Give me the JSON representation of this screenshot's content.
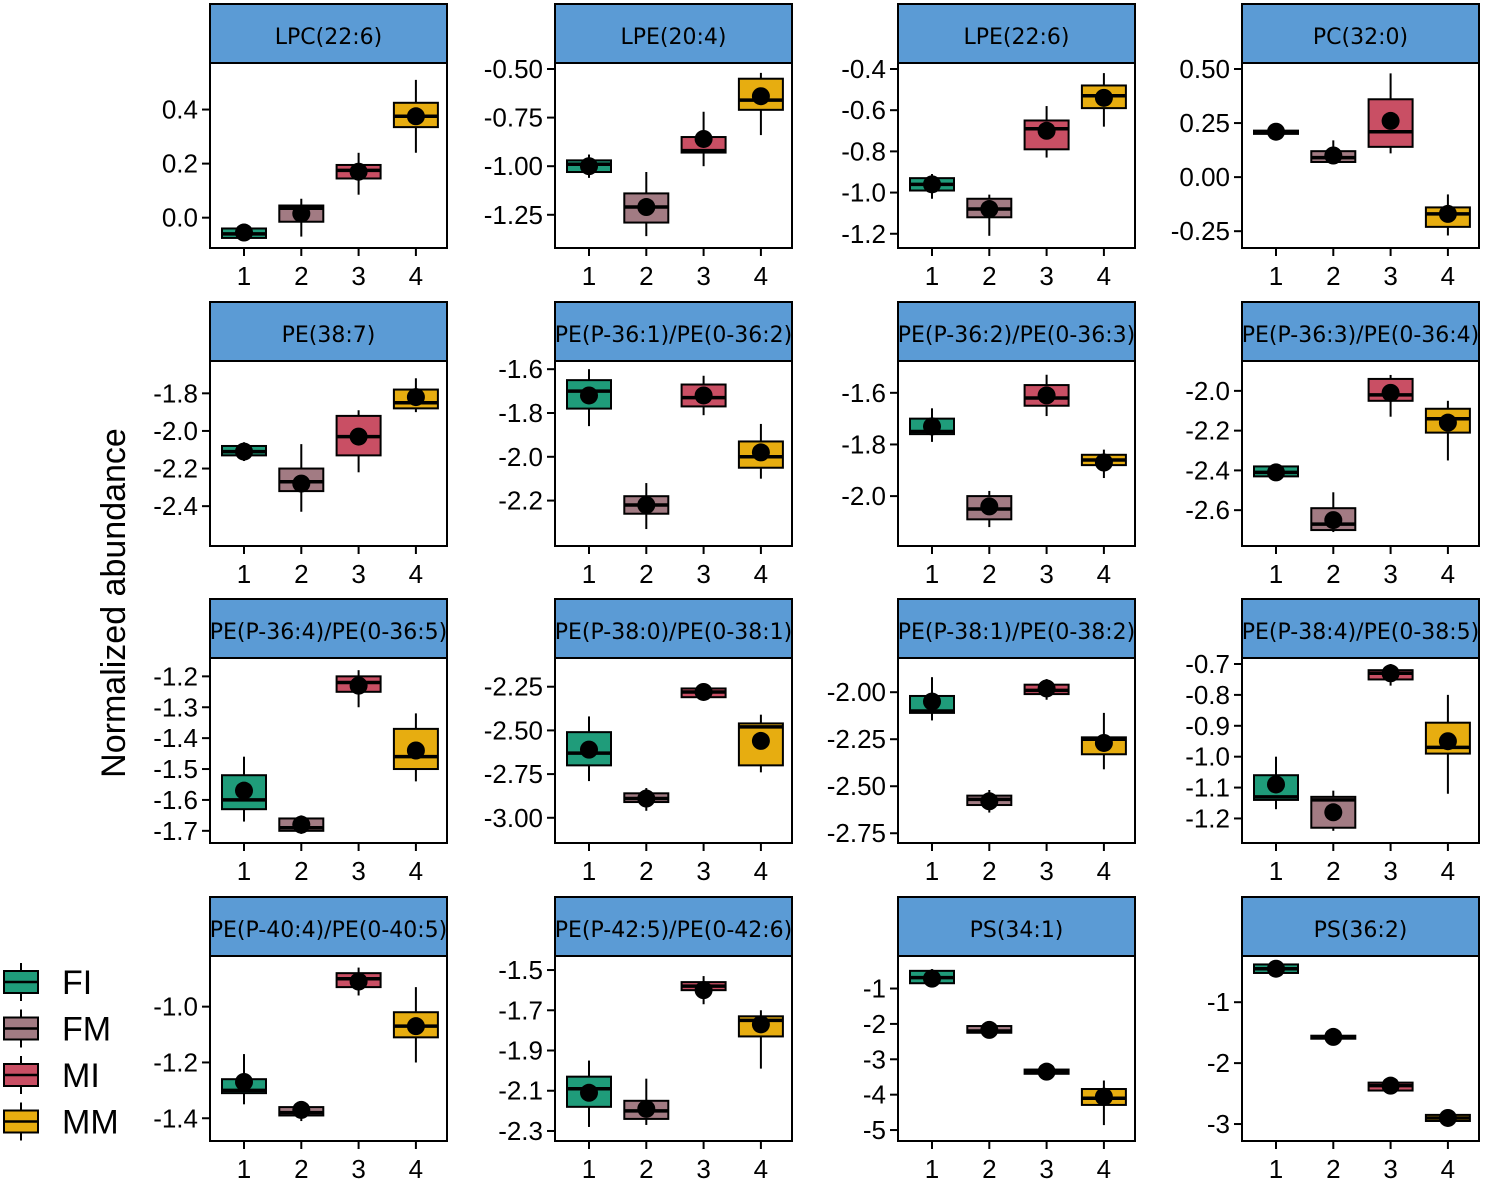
{
  "figure": {
    "ylabel": "Normalized abundance",
    "x_categories": [
      "1",
      "2",
      "3",
      "4"
    ],
    "strip_color": "#5b9bd5",
    "group_colors": {
      "FI": "#1f9c7a",
      "FM": "#a27b83",
      "MI": "#c94f64",
      "MM": "#e7ad10"
    },
    "legend": {
      "title": "",
      "items": [
        {
          "label": "FI",
          "color": "#1f9c7a"
        },
        {
          "label": "FM",
          "color": "#a27b83"
        },
        {
          "label": "MI",
          "color": "#c94f64"
        },
        {
          "label": "MM",
          "color": "#e7ad10"
        }
      ]
    }
  },
  "chart_data": [
    {
      "type": "box",
      "title": "LPC(22:6)",
      "categories": [
        "1",
        "2",
        "3",
        "4"
      ],
      "yticks": [
        "0.0",
        "0.2",
        "0.4"
      ],
      "ytick_values": [
        0.0,
        0.2,
        0.4
      ],
      "ylim": [
        -0.09,
        0.55
      ],
      "boxes": [
        {
          "group": "FI",
          "q1": -0.075,
          "median": -0.06,
          "q3": -0.04,
          "min": -0.085,
          "max": -0.03,
          "mean": -0.055
        },
        {
          "group": "FM",
          "q1": -0.015,
          "median": 0.035,
          "q3": 0.045,
          "min": -0.07,
          "max": 0.07,
          "mean": 0.015
        },
        {
          "group": "MI",
          "q1": 0.145,
          "median": 0.175,
          "q3": 0.195,
          "min": 0.085,
          "max": 0.24,
          "mean": 0.17
        },
        {
          "group": "MM",
          "q1": 0.335,
          "median": 0.375,
          "q3": 0.425,
          "min": 0.24,
          "max": 0.51,
          "mean": 0.375
        }
      ]
    },
    {
      "type": "box",
      "title": "LPE(20:4)",
      "categories": [
        "1",
        "2",
        "3",
        "4"
      ],
      "yticks": [
        "-0.50",
        "-0.75",
        "-1.00",
        "-1.25"
      ],
      "ytick_values": [
        -0.5,
        -0.75,
        -1.0,
        -1.25
      ],
      "ylim": [
        -1.39,
        -0.5
      ],
      "boxes": [
        {
          "group": "FI",
          "q1": -1.03,
          "median": -0.99,
          "q3": -0.97,
          "min": -1.06,
          "max": -0.94,
          "mean": -1.0
        },
        {
          "group": "FM",
          "q1": -1.29,
          "median": -1.21,
          "q3": -1.14,
          "min": -1.36,
          "max": -1.03,
          "mean": -1.21
        },
        {
          "group": "MI",
          "q1": -0.93,
          "median": -0.92,
          "q3": -0.85,
          "min": -1.0,
          "max": -0.72,
          "mean": -0.86
        },
        {
          "group": "MM",
          "q1": -0.71,
          "median": -0.66,
          "q3": -0.55,
          "min": -0.84,
          "max": -0.52,
          "mean": -0.64
        }
      ]
    },
    {
      "type": "box",
      "title": "LPE(22:6)",
      "categories": [
        "1",
        "2",
        "3",
        "4"
      ],
      "yticks": [
        "-0.4",
        "-0.6",
        "-0.8",
        "-1.0",
        "-1.2"
      ],
      "ytick_values": [
        -0.4,
        -0.6,
        -0.8,
        -1.0,
        -1.2
      ],
      "ylim": [
        -1.24,
        -0.4
      ],
      "boxes": [
        {
          "group": "FI",
          "q1": -0.99,
          "median": -0.96,
          "q3": -0.93,
          "min": -1.03,
          "max": -0.91,
          "mean": -0.96
        },
        {
          "group": "FM",
          "q1": -1.12,
          "median": -1.08,
          "q3": -1.03,
          "min": -1.21,
          "max": -1.01,
          "mean": -1.08
        },
        {
          "group": "MI",
          "q1": -0.79,
          "median": -0.69,
          "q3": -0.65,
          "min": -0.83,
          "max": -0.58,
          "mean": -0.7
        },
        {
          "group": "MM",
          "q1": -0.59,
          "median": -0.53,
          "q3": -0.48,
          "min": -0.68,
          "max": -0.42,
          "mean": -0.54
        }
      ]
    },
    {
      "type": "box",
      "title": "PC(32:0)",
      "categories": [
        "1",
        "2",
        "3",
        "4"
      ],
      "yticks": [
        "0.50",
        "0.25",
        "0.00",
        "-0.25"
      ],
      "ytick_values": [
        0.5,
        0.25,
        0.0,
        -0.25
      ],
      "ylim": [
        -0.3,
        0.5
      ],
      "boxes": [
        {
          "group": "FI",
          "q1": 0.2,
          "median": 0.21,
          "q3": 0.215,
          "min": 0.19,
          "max": 0.22,
          "mean": 0.21
        },
        {
          "group": "FM",
          "q1": 0.07,
          "median": 0.09,
          "q3": 0.12,
          "min": 0.06,
          "max": 0.17,
          "mean": 0.1
        },
        {
          "group": "MI",
          "q1": 0.14,
          "median": 0.21,
          "q3": 0.36,
          "min": 0.11,
          "max": 0.48,
          "mean": 0.26
        },
        {
          "group": "MM",
          "q1": -0.23,
          "median": -0.17,
          "q3": -0.14,
          "min": -0.27,
          "max": -0.08,
          "mean": -0.17
        }
      ]
    },
    {
      "type": "box",
      "title": "PE(38:7)",
      "categories": [
        "1",
        "2",
        "3",
        "4"
      ],
      "yticks": [
        "-1.8",
        "-2.0",
        "-2.2",
        "-2.4"
      ],
      "ytick_values": [
        -1.8,
        -2.0,
        -2.2,
        -2.4
      ],
      "ylim": [
        -2.58,
        -1.66
      ],
      "boxes": [
        {
          "group": "FI",
          "q1": -2.13,
          "median": -2.11,
          "q3": -2.08,
          "min": -2.16,
          "max": -2.06,
          "mean": -2.11
        },
        {
          "group": "FM",
          "q1": -2.32,
          "median": -2.27,
          "q3": -2.2,
          "min": -2.43,
          "max": -2.07,
          "mean": -2.28
        },
        {
          "group": "MI",
          "q1": -2.13,
          "median": -2.03,
          "q3": -1.92,
          "min": -2.22,
          "max": -1.89,
          "mean": -2.03
        },
        {
          "group": "MM",
          "q1": -1.88,
          "median": -1.85,
          "q3": -1.78,
          "min": -1.9,
          "max": -1.72,
          "mean": -1.82
        }
      ]
    },
    {
      "type": "box",
      "title": "PE(P-36:1)/PE(0-36:2)",
      "categories": [
        "1",
        "2",
        "3",
        "4"
      ],
      "yticks": [
        "-1.6",
        "-1.8",
        "-2.0",
        "-2.2"
      ],
      "ytick_values": [
        -1.6,
        -1.8,
        -2.0,
        -2.2
      ],
      "ylim": [
        -2.38,
        -1.59
      ],
      "boxes": [
        {
          "group": "FI",
          "q1": -1.78,
          "median": -1.7,
          "q3": -1.65,
          "min": -1.86,
          "max": -1.6,
          "mean": -1.72
        },
        {
          "group": "FM",
          "q1": -2.26,
          "median": -2.22,
          "q3": -2.18,
          "min": -2.33,
          "max": -2.12,
          "mean": -2.22
        },
        {
          "group": "MI",
          "q1": -1.77,
          "median": -1.73,
          "q3": -1.67,
          "min": -1.81,
          "max": -1.63,
          "mean": -1.72
        },
        {
          "group": "MM",
          "q1": -2.05,
          "median": -2.0,
          "q3": -1.93,
          "min": -2.1,
          "max": -1.85,
          "mean": -1.98
        }
      ]
    },
    {
      "type": "box",
      "title": "PE(P-36:2)/PE(0-36:3)",
      "categories": [
        "1",
        "2",
        "3",
        "4"
      ],
      "yticks": [
        "-1.6",
        "-1.8",
        "-2.0"
      ],
      "ytick_values": [
        -1.6,
        -1.8,
        -2.0
      ],
      "ylim": [
        -2.17,
        -1.5
      ],
      "boxes": [
        {
          "group": "FI",
          "q1": -1.76,
          "median": -1.75,
          "q3": -1.7,
          "min": -1.79,
          "max": -1.66,
          "mean": -1.73
        },
        {
          "group": "FM",
          "q1": -2.09,
          "median": -2.05,
          "q3": -2.0,
          "min": -2.12,
          "max": -1.98,
          "mean": -2.04
        },
        {
          "group": "MI",
          "q1": -1.65,
          "median": -1.62,
          "q3": -1.57,
          "min": -1.69,
          "max": -1.53,
          "mean": -1.61
        },
        {
          "group": "MM",
          "q1": -1.88,
          "median": -1.86,
          "q3": -1.84,
          "min": -1.93,
          "max": -1.82,
          "mean": -1.87
        }
      ]
    },
    {
      "type": "box",
      "title": "PE(P-36:3)/PE(0-36:4)",
      "categories": [
        "1",
        "2",
        "3",
        "4"
      ],
      "yticks": [
        "-2.0",
        "-2.2",
        "-2.4",
        "-2.6"
      ],
      "ytick_values": [
        -2.0,
        -2.2,
        -2.4,
        -2.6
      ],
      "ylim": [
        -2.75,
        -1.88
      ],
      "boxes": [
        {
          "group": "FI",
          "q1": -2.43,
          "median": -2.41,
          "q3": -2.38,
          "min": -2.45,
          "max": -2.37,
          "mean": -2.41
        },
        {
          "group": "FM",
          "q1": -2.7,
          "median": -2.67,
          "q3": -2.59,
          "min": -2.71,
          "max": -2.51,
          "mean": -2.65
        },
        {
          "group": "MI",
          "q1": -2.05,
          "median": -2.02,
          "q3": -1.94,
          "min": -2.13,
          "max": -1.92,
          "mean": -2.01
        },
        {
          "group": "MM",
          "q1": -2.21,
          "median": -2.14,
          "q3": -2.09,
          "min": -2.35,
          "max": -2.05,
          "mean": -2.16
        }
      ]
    },
    {
      "type": "box",
      "title": "PE(P-36:4)/PE(0-36:5)",
      "categories": [
        "1",
        "2",
        "3",
        "4"
      ],
      "yticks": [
        "-1.2",
        "-1.3",
        "-1.4",
        "-1.5",
        "-1.6",
        "-1.7"
      ],
      "ytick_values": [
        -1.2,
        -1.3,
        -1.4,
        -1.5,
        -1.6,
        -1.7
      ],
      "ylim": [
        -1.72,
        -1.16
      ],
      "boxes": [
        {
          "group": "FI",
          "q1": -1.63,
          "median": -1.6,
          "q3": -1.52,
          "min": -1.67,
          "max": -1.46,
          "mean": -1.57
        },
        {
          "group": "FM",
          "q1": -1.7,
          "median": -1.69,
          "q3": -1.66,
          "min": -1.71,
          "max": -1.65,
          "mean": -1.68
        },
        {
          "group": "MI",
          "q1": -1.25,
          "median": -1.22,
          "q3": -1.2,
          "min": -1.3,
          "max": -1.18,
          "mean": -1.23
        },
        {
          "group": "MM",
          "q1": -1.5,
          "median": -1.46,
          "q3": -1.37,
          "min": -1.54,
          "max": -1.32,
          "mean": -1.44
        }
      ]
    },
    {
      "type": "box",
      "title": "PE(P-38:0)/PE(0-38:1)",
      "categories": [
        "1",
        "2",
        "3",
        "4"
      ],
      "yticks": [
        "-2.25",
        "-2.50",
        "-2.75",
        "-3.00"
      ],
      "ytick_values": [
        -2.25,
        -2.5,
        -2.75,
        -3.0
      ],
      "ylim": [
        -3.11,
        -2.12
      ],
      "boxes": [
        {
          "group": "FI",
          "q1": -2.7,
          "median": -2.63,
          "q3": -2.51,
          "min": -2.79,
          "max": -2.42,
          "mean": -2.61
        },
        {
          "group": "FM",
          "q1": -2.91,
          "median": -2.89,
          "q3": -2.86,
          "min": -2.96,
          "max": -2.83,
          "mean": -2.89
        },
        {
          "group": "MI",
          "q1": -2.31,
          "median": -2.28,
          "q3": -2.26,
          "min": -2.32,
          "max": -2.23,
          "mean": -2.28
        },
        {
          "group": "MM",
          "q1": -2.7,
          "median": -2.48,
          "q3": -2.46,
          "min": -2.74,
          "max": -2.41,
          "mean": -2.56
        }
      ]
    },
    {
      "type": "box",
      "title": "PE(P-38:1)/PE(0-38:2)",
      "categories": [
        "1",
        "2",
        "3",
        "4"
      ],
      "yticks": [
        "-2.00",
        "-2.25",
        "-2.50",
        "-2.75"
      ],
      "ytick_values": [
        -2.0,
        -2.25,
        -2.5,
        -2.75
      ],
      "ylim": [
        -2.77,
        -1.85
      ],
      "boxes": [
        {
          "group": "FI",
          "q1": -2.11,
          "median": -2.1,
          "q3": -2.02,
          "min": -2.15,
          "max": -1.92,
          "mean": -2.05
        },
        {
          "group": "FM",
          "q1": -2.6,
          "median": -2.57,
          "q3": -2.55,
          "min": -2.64,
          "max": -2.52,
          "mean": -2.58
        },
        {
          "group": "MI",
          "q1": -2.01,
          "median": -1.99,
          "q3": -1.96,
          "min": -2.04,
          "max": -1.93,
          "mean": -1.98
        },
        {
          "group": "MM",
          "q1": -2.33,
          "median": -2.25,
          "q3": -2.24,
          "min": -2.41,
          "max": -2.11,
          "mean": -2.27
        }
      ]
    },
    {
      "type": "box",
      "title": "PE(P-38:4)/PE(0-38:5)",
      "categories": [
        "1",
        "2",
        "3",
        "4"
      ],
      "yticks": [
        "-0.7",
        "-0.8",
        "-0.9",
        "-1.0",
        "-1.1",
        "-1.2"
      ],
      "ytick_values": [
        -0.7,
        -0.8,
        -0.9,
        -1.0,
        -1.1,
        -1.2
      ],
      "ylim": [
        -1.26,
        -0.7
      ],
      "boxes": [
        {
          "group": "FI",
          "q1": -1.14,
          "median": -1.13,
          "q3": -1.06,
          "min": -1.17,
          "max": -1.0,
          "mean": -1.09
        },
        {
          "group": "FM",
          "q1": -1.23,
          "median": -1.14,
          "q3": -1.13,
          "min": -1.24,
          "max": -1.11,
          "mean": -1.18
        },
        {
          "group": "MI",
          "q1": -0.75,
          "median": -0.73,
          "q3": -0.72,
          "min": -0.77,
          "max": -0.7,
          "mean": -0.73
        },
        {
          "group": "MM",
          "q1": -0.99,
          "median": -0.97,
          "q3": -0.89,
          "min": -1.12,
          "max": -0.8,
          "mean": -0.95
        }
      ]
    },
    {
      "type": "box",
      "title": "PE(P-40:4)/PE(0-40:5)",
      "categories": [
        "1",
        "2",
        "3",
        "4"
      ],
      "yticks": [
        "-1.0",
        "-1.2",
        "-1.4"
      ],
      "ytick_values": [
        -1.0,
        -1.2,
        -1.4
      ],
      "ylim": [
        -1.46,
        -0.84
      ],
      "boxes": [
        {
          "group": "FI",
          "q1": -1.31,
          "median": -1.3,
          "q3": -1.26,
          "min": -1.35,
          "max": -1.17,
          "mean": -1.27
        },
        {
          "group": "FM",
          "q1": -1.39,
          "median": -1.38,
          "q3": -1.36,
          "min": -1.41,
          "max": -1.34,
          "mean": -1.37
        },
        {
          "group": "MI",
          "q1": -0.93,
          "median": -0.9,
          "q3": -0.88,
          "min": -0.96,
          "max": -0.86,
          "mean": -0.91
        },
        {
          "group": "MM",
          "q1": -1.11,
          "median": -1.07,
          "q3": -1.02,
          "min": -1.2,
          "max": -0.93,
          "mean": -1.07
        }
      ]
    },
    {
      "type": "box",
      "title": "PE(P-42:5)/PE(0-42:6)",
      "categories": [
        "1",
        "2",
        "3",
        "4"
      ],
      "yticks": [
        "-1.5",
        "-1.7",
        "-1.9",
        "-2.1",
        "-2.3"
      ],
      "ytick_values": [
        -1.5,
        -1.7,
        -1.9,
        -2.1,
        -2.3
      ],
      "ylim": [
        -2.32,
        -1.46
      ],
      "boxes": [
        {
          "group": "FI",
          "q1": -2.18,
          "median": -2.09,
          "q3": -2.03,
          "min": -2.28,
          "max": -1.95,
          "mean": -2.11
        },
        {
          "group": "FM",
          "q1": -2.24,
          "median": -2.2,
          "q3": -2.15,
          "min": -2.27,
          "max": -2.04,
          "mean": -2.19
        },
        {
          "group": "MI",
          "q1": -1.6,
          "median": -1.58,
          "q3": -1.56,
          "min": -1.67,
          "max": -1.53,
          "mean": -1.6
        },
        {
          "group": "MM",
          "q1": -1.83,
          "median": -1.75,
          "q3": -1.73,
          "min": -1.99,
          "max": -1.7,
          "mean": -1.77
        }
      ]
    },
    {
      "type": "box",
      "title": "PS(34:1)",
      "categories": [
        "1",
        "2",
        "3",
        "4"
      ],
      "yticks": [
        "-1",
        "-2",
        "-3",
        "-4",
        "-5"
      ],
      "ytick_values": [
        -1,
        -2,
        -3,
        -4,
        -5
      ],
      "ylim": [
        -5.14,
        -0.25
      ],
      "boxes": [
        {
          "group": "FI",
          "q1": -0.85,
          "median": -0.69,
          "q3": -0.5,
          "min": -0.95,
          "max": -0.45,
          "mean": -0.72
        },
        {
          "group": "FM",
          "q1": -2.25,
          "median": -2.2,
          "q3": -2.06,
          "min": -2.28,
          "max": -2.0,
          "mean": -2.17
        },
        {
          "group": "MI",
          "q1": -3.41,
          "median": -3.35,
          "q3": -3.29,
          "min": -3.43,
          "max": -3.25,
          "mean": -3.35
        },
        {
          "group": "MM",
          "q1": -4.29,
          "median": -4.1,
          "q3": -3.84,
          "min": -4.86,
          "max": -3.6,
          "mean": -4.06
        }
      ]
    },
    {
      "type": "box",
      "title": "PS(36:2)",
      "categories": [
        "1",
        "2",
        "3",
        "4"
      ],
      "yticks": [
        "-1",
        "-2",
        "-3"
      ],
      "ytick_values": [
        -1,
        -2,
        -3
      ],
      "ylim": [
        -3.18,
        -0.34
      ],
      "boxes": [
        {
          "group": "FI",
          "q1": -0.52,
          "median": -0.45,
          "q3": -0.38,
          "min": -0.55,
          "max": -0.35,
          "mean": -0.45
        },
        {
          "group": "FM",
          "q1": -1.58,
          "median": -1.57,
          "q3": -1.55,
          "min": -1.62,
          "max": -1.5,
          "mean": -1.57
        },
        {
          "group": "MI",
          "q1": -2.45,
          "median": -2.37,
          "q3": -2.32,
          "min": -2.47,
          "max": -2.3,
          "mean": -2.37
        },
        {
          "group": "MM",
          "q1": -2.95,
          "median": -2.9,
          "q3": -2.85,
          "min": -3.0,
          "max": -2.8,
          "mean": -2.9
        }
      ]
    }
  ]
}
